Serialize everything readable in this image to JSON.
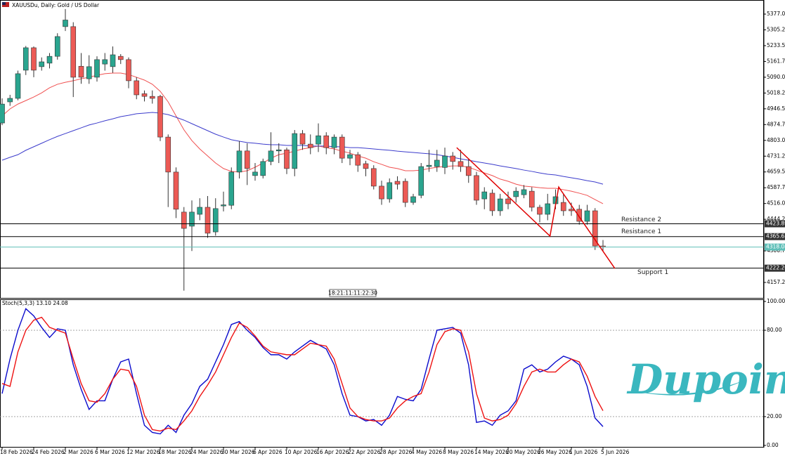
{
  "chart_data": [
    {
      "type": "candlestick",
      "title": "XAUUSDu, Daily: Gold / US Dollar",
      "categories": [
        "18 Feb 2026",
        null,
        null,
        null,
        "24 Feb 2026",
        null,
        null,
        null,
        "2 Mar 2026",
        null,
        null,
        null,
        "6 Mar 2026",
        null,
        null,
        null,
        "12 Mar 2026",
        null,
        null,
        null,
        "18 Mar 2026",
        null,
        null,
        null,
        "24 Mar 2026",
        null,
        null,
        null,
        "30 Mar 2026",
        null,
        null,
        null,
        "6 Apr 2026",
        null,
        null,
        null,
        "10 Apr 2026",
        null,
        null,
        null,
        "16 Apr 2026",
        null,
        null,
        null,
        "22 Apr 2026",
        null,
        null,
        null,
        "28 Apr 2026",
        null,
        null,
        null,
        "4 May 2026",
        null,
        null,
        null,
        "8 May 2026",
        null,
        null,
        null,
        "14 May 2026",
        null,
        null,
        null,
        "20 May 2026",
        null,
        null,
        null,
        "26 May 2026",
        null,
        null,
        null,
        "1 Jun 2026",
        null,
        null,
        null,
        "5 Jun 2026"
      ],
      "open": [
        4882,
        4978,
        4994,
        5122,
        5224,
        5138,
        5154,
        5185,
        5320,
        5320,
        5140,
        5083,
        5090,
        5150,
        5138,
        5185,
        5170,
        5074,
        5015,
        5003,
        5003,
        4818,
        4659,
        4477,
        4413,
        4467,
        4499,
        4387,
        4505,
        4508,
        4659,
        4755,
        4643,
        4643,
        4707,
        4755,
        4760,
        4675,
        4834,
        4786,
        4786,
        4824,
        4770,
        4818,
        4722,
        4738,
        4697,
        4675,
        4595,
        4537,
        4617,
        4617,
        4521,
        4553,
        4684,
        4684,
        4680,
        4732,
        4707,
        4684,
        4643,
        4537,
        4563,
        4483,
        4537,
        4547,
        4556,
        4572,
        4499,
        4467,
        4515,
        4521,
        4490,
        4490,
        4435,
        4483,
        4323
      ],
      "high": [
        4994,
        5010,
        5120,
        5232,
        5230,
        5180,
        5200,
        5290,
        5400,
        5340,
        5200,
        5190,
        5185,
        5200,
        5230,
        5195,
        5180,
        5090,
        5030,
        5030,
        5010,
        4830,
        4680,
        4500,
        4530,
        4540,
        4550,
        4540,
        4570,
        4680,
        4800,
        4790,
        4700,
        4720,
        4840,
        4790,
        4770,
        4850,
        4850,
        4830,
        4880,
        4840,
        4830,
        4830,
        4760,
        4750,
        4710,
        4690,
        4620,
        4630,
        4640,
        4630,
        4560,
        4700,
        4760,
        4760,
        4770,
        4750,
        4760,
        4720,
        4660,
        4590,
        4580,
        4560,
        4570,
        4590,
        4600,
        4590,
        4510,
        4560,
        4580,
        4560,
        4520,
        4510,
        4510,
        4495,
        4350
      ],
      "low": [
        4872,
        4960,
        4985,
        5100,
        5090,
        5120,
        5130,
        5170,
        5300,
        5000,
        5060,
        5060,
        5070,
        5120,
        5110,
        5150,
        5040,
        4990,
        4980,
        4970,
        4800,
        4500,
        4450,
        4120,
        4300,
        4440,
        4360,
        4370,
        4480,
        4490,
        4630,
        4600,
        4620,
        4630,
        4690,
        4700,
        4650,
        4640,
        4760,
        4740,
        4750,
        4740,
        4740,
        4700,
        4690,
        4660,
        4640,
        4580,
        4510,
        4520,
        4580,
        4500,
        4510,
        4540,
        4660,
        4660,
        4650,
        4670,
        4660,
        4610,
        4510,
        4490,
        4460,
        4460,
        4490,
        4520,
        4540,
        4480,
        4430,
        4440,
        4490,
        4460,
        4460,
        4420,
        4420,
        4305,
        4300
      ],
      "close": [
        4968,
        4994,
        5106,
        5224,
        5122,
        5160,
        5185,
        5275,
        5350,
        5090,
        5090,
        5138,
        5170,
        5170,
        5192,
        5170,
        5074,
        5010,
        5003,
        4994,
        4818,
        4659,
        4490,
        4403,
        4477,
        4499,
        4381,
        4493,
        4510,
        4659,
        4755,
        4675,
        4659,
        4707,
        4755,
        4760,
        4675,
        4834,
        4786,
        4770,
        4824,
        4770,
        4818,
        4722,
        4738,
        4690,
        4675,
        4595,
        4537,
        4611,
        4604,
        4521,
        4547,
        4684,
        4690,
        4713,
        4732,
        4707,
        4684,
        4643,
        4531,
        4569,
        4483,
        4537,
        4515,
        4572,
        4579,
        4499,
        4467,
        4515,
        4547,
        4483,
        4483,
        4435,
        4483,
        4323,
        4318.08
      ],
      "up_color": "#2aa58f",
      "down_color": "#ec5a55",
      "ma": [
        {
          "color": "#f05050",
          "values": [
            4914,
            4946,
            4968,
            4984,
            5000,
            5019,
            5042,
            5058,
            5067,
            5074,
            5083,
            5090,
            5099,
            5106,
            5109,
            5109,
            5102,
            5090,
            5077,
            5058,
            5026,
            4978,
            4914,
            4851,
            4802,
            4764,
            4732,
            4700,
            4675,
            4662,
            4659,
            4665,
            4681,
            4700,
            4722,
            4738,
            4745,
            4754,
            4764,
            4770,
            4777,
            4770,
            4764,
            4754,
            4745,
            4732,
            4722,
            4706,
            4694,
            4681,
            4675,
            4665,
            4665,
            4668,
            4675,
            4681,
            4684,
            4687,
            4687,
            4681,
            4668,
            4655,
            4643,
            4627,
            4617,
            4604,
            4595,
            4592,
            4588,
            4585,
            4585,
            4579,
            4572,
            4563,
            4553,
            4534,
            4515
          ]
        },
        {
          "color": "#3c3ccc",
          "values": [
            4713,
            4726,
            4738,
            4758,
            4774,
            4790,
            4806,
            4821,
            4834,
            4847,
            4860,
            4873,
            4882,
            4892,
            4901,
            4911,
            4917,
            4924,
            4927,
            4930,
            4927,
            4920,
            4908,
            4895,
            4879,
            4863,
            4847,
            4831,
            4818,
            4806,
            4799,
            4793,
            4790,
            4786,
            4783,
            4783,
            4780,
            4780,
            4780,
            4777,
            4777,
            4777,
            4774,
            4774,
            4770,
            4770,
            4767,
            4764,
            4761,
            4758,
            4754,
            4751,
            4748,
            4745,
            4742,
            4738,
            4732,
            4726,
            4719,
            4713,
            4706,
            4700,
            4694,
            4687,
            4681,
            4675,
            4668,
            4662,
            4655,
            4649,
            4646,
            4639,
            4633,
            4627,
            4620,
            4614,
            4604
          ]
        }
      ],
      "levels": [
        {
          "name": "Resistance 2",
          "price": {
            "value": 4423.89,
            "label": "4423.89"
          },
          "color": "#000000"
        },
        {
          "name": "Resistance 1",
          "price": {
            "value": 4365.63,
            "label": "4365.63"
          },
          "color": "#000000"
        },
        {
          "name": "Support 1",
          "price": {
            "value": 4222.2,
            "label": "4222.20"
          },
          "color": "#000000"
        },
        {
          "price": {
            "value": 4318.08,
            "label": "4318.08"
          },
          "color": "#5fbfb8"
        }
      ],
      "trendline": {
        "color": "#e00000",
        "x": [
          57.5,
          69.3,
          70.4,
          77.5
        ],
        "y": [
          4770,
          4368,
          4591,
          4221
        ]
      },
      "ylim": [
        4087,
        5441
      ],
      "yticks": [
        {
          "value": 5377,
          "label": "5377.00"
        },
        {
          "value": 5305.25,
          "label": "5305.25"
        },
        {
          "value": 5233.5,
          "label": "5233.50"
        },
        {
          "value": 5161.75,
          "label": "5161.75"
        },
        {
          "value": 5090,
          "label": "5090.00"
        },
        {
          "value": 5018.25,
          "label": "5018.25"
        },
        {
          "value": 4946.5,
          "label": "4946.50"
        },
        {
          "value": 4874.75,
          "label": "4874.75"
        },
        {
          "value": 4803,
          "label": "4803.00"
        },
        {
          "value": 4731.25,
          "label": "4731.25"
        },
        {
          "value": 4659.5,
          "label": "4659.50"
        },
        {
          "value": 4587.75,
          "label": "4587.75"
        },
        {
          "value": 4516,
          "label": "4516.00"
        },
        {
          "value": 4444.25,
          "label": "4444.25"
        },
        {
          "value": 4300.75,
          "label": "4300.75"
        },
        {
          "value": 4157.25,
          "label": "4157.25"
        }
      ],
      "grid": false
    },
    {
      "type": "line",
      "title": "Stoch(5,3,3) 13.10 24.08",
      "series": [
        {
          "color": "#0a0acc",
          "values": [
            36,
            60,
            80,
            95,
            90,
            82,
            75,
            81,
            80,
            56,
            39,
            25,
            31,
            31,
            46,
            58,
            60,
            36,
            14,
            9,
            8,
            14,
            9,
            21,
            29,
            41,
            46,
            58,
            70,
            84,
            86,
            80,
            75,
            68,
            63,
            63,
            60,
            65,
            69,
            73,
            70,
            67,
            56,
            36,
            21,
            20,
            17,
            18,
            14,
            21,
            34,
            32,
            31,
            39,
            60,
            80,
            81,
            82,
            78,
            56,
            16,
            17,
            14,
            21,
            24,
            31,
            53,
            56,
            51,
            53,
            58,
            62,
            60,
            56,
            41,
            19,
            13.1
          ]
        },
        {
          "color": "#ee1111",
          "values": [
            43,
            41,
            65,
            80,
            87,
            89,
            82,
            80,
            78,
            60,
            43,
            31,
            30,
            36,
            46,
            53,
            52,
            41,
            21,
            11,
            10,
            12,
            11,
            17,
            24,
            34,
            42,
            51,
            63,
            75,
            85,
            82,
            76,
            69,
            65,
            64,
            63,
            63,
            67,
            71,
            70,
            69,
            60,
            43,
            26,
            20,
            18,
            17,
            17,
            19,
            26,
            31,
            34,
            36,
            51,
            70,
            79,
            81,
            80,
            65,
            36,
            19,
            17,
            18,
            21,
            29,
            41,
            51,
            53,
            51,
            51,
            56,
            60,
            58,
            48,
            34,
            24.08
          ]
        }
      ],
      "levels": [
        80,
        20
      ],
      "ylim": [
        -1.5,
        101.5
      ],
      "yticks": [
        {
          "value": 100,
          "label": "100.00"
        },
        {
          "value": 80,
          "label": "80.00"
        },
        {
          "value": 20,
          "label": "20.00"
        },
        {
          "value": 0,
          "label": "0.00"
        }
      ]
    }
  ],
  "crosshair_label": "18:21:11:11:22:30",
  "watermark": "Dupoin"
}
